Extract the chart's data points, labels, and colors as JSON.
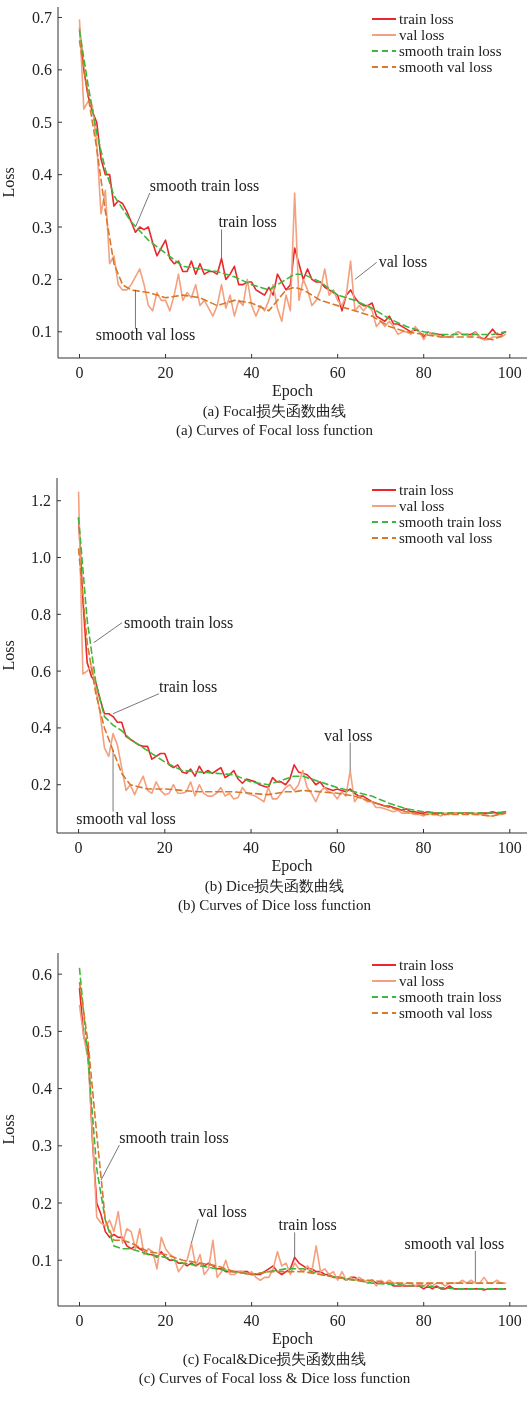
{
  "chart_data": [
    {
      "type": "line",
      "title": "(a) Focal损失函数曲线",
      "subtitle": "(a) Curves of Focal loss function",
      "xlabel": "Epoch",
      "ylabel": "Loss",
      "xlim": [
        -5,
        104
      ],
      "ylim": [
        0.05,
        0.72
      ],
      "xticks": [
        0,
        20,
        40,
        60,
        80,
        100
      ],
      "yticks": [
        0.1,
        0.2,
        0.3,
        0.4,
        0.5,
        0.6,
        0.7
      ],
      "legend": "top right",
      "x": [
        0,
        1,
        2,
        3,
        4,
        5,
        6,
        7,
        8,
        9,
        10,
        11,
        12,
        13,
        14,
        15,
        16,
        17,
        18,
        19,
        20,
        21,
        22,
        23,
        24,
        25,
        26,
        27,
        28,
        29,
        30,
        31,
        32,
        33,
        34,
        35,
        36,
        37,
        38,
        39,
        40,
        41,
        42,
        43,
        44,
        45,
        46,
        47,
        48,
        49,
        50,
        51,
        52,
        53,
        54,
        55,
        56,
        57,
        58,
        59,
        60,
        61,
        62,
        63,
        64,
        65,
        66,
        67,
        68,
        69,
        70,
        71,
        72,
        73,
        74,
        75,
        76,
        77,
        78,
        79,
        80,
        81,
        82,
        83,
        84,
        85,
        86,
        87,
        88,
        89,
        90,
        91,
        92,
        93,
        94,
        95,
        96,
        97,
        98,
        99
      ],
      "series": [
        {
          "name": "train loss",
          "color": "#e8282b",
          "line_style": "solid",
          "values": [
            0.68,
            0.6,
            0.55,
            0.52,
            0.5,
            0.43,
            0.4,
            0.4,
            0.34,
            0.35,
            0.345,
            0.33,
            0.31,
            0.29,
            0.3,
            0.295,
            0.3,
            0.27,
            0.245,
            0.26,
            0.275,
            0.24,
            0.23,
            0.235,
            0.215,
            0.215,
            0.235,
            0.21,
            0.23,
            0.21,
            0.215,
            0.215,
            0.21,
            0.24,
            0.2,
            0.21,
            0.225,
            0.19,
            0.19,
            0.195,
            0.195,
            0.18,
            0.175,
            0.17,
            0.185,
            0.17,
            0.21,
            0.195,
            0.18,
            0.19,
            0.26,
            0.23,
            0.2,
            0.22,
            0.2,
            0.195,
            0.195,
            0.185,
            0.18,
            0.175,
            0.17,
            0.14,
            0.17,
            0.18,
            0.165,
            0.155,
            0.15,
            0.15,
            0.155,
            0.13,
            0.125,
            0.12,
            0.13,
            0.115,
            0.115,
            0.11,
            0.105,
            0.1,
            0.105,
            0.1,
            0.09,
            0.1,
            0.095,
            0.095,
            0.095,
            0.09,
            0.09,
            0.095,
            0.1,
            0.095,
            0.095,
            0.095,
            0.1,
            0.09,
            0.085,
            0.095,
            0.105,
            0.095,
            0.095,
            0.1
          ]
        },
        {
          "name": "val loss",
          "color": "#f4a07f",
          "line_style": "solid",
          "values": [
            0.695,
            0.525,
            0.54,
            0.53,
            0.46,
            0.325,
            0.37,
            0.23,
            0.245,
            0.19,
            0.18,
            0.18,
            0.19,
            0.205,
            0.22,
            0.19,
            0.15,
            0.14,
            0.175,
            0.16,
            0.16,
            0.14,
            0.17,
            0.21,
            0.16,
            0.175,
            0.165,
            0.19,
            0.15,
            0.16,
            0.145,
            0.13,
            0.15,
            0.19,
            0.145,
            0.17,
            0.13,
            0.16,
            0.15,
            0.2,
            0.15,
            0.13,
            0.15,
            0.14,
            0.16,
            0.19,
            0.145,
            0.12,
            0.17,
            0.14,
            0.365,
            0.16,
            0.2,
            0.18,
            0.15,
            0.16,
            0.18,
            0.22,
            0.17,
            0.18,
            0.16,
            0.15,
            0.17,
            0.235,
            0.14,
            0.15,
            0.14,
            0.15,
            0.14,
            0.11,
            0.12,
            0.11,
            0.12,
            0.11,
            0.095,
            0.1,
            0.1,
            0.095,
            0.11,
            0.1,
            0.085,
            0.1,
            0.095,
            0.095,
            0.09,
            0.09,
            0.09,
            0.095,
            0.1,
            0.095,
            0.095,
            0.09,
            0.1,
            0.09,
            0.085,
            0.085,
            0.09,
            0.09,
            0.09,
            0.095
          ]
        },
        {
          "name": "smooth train loss",
          "color": "#3cb83c",
          "line_style": "dashed",
          "x": [
            0,
            2,
            4,
            6,
            8,
            10,
            12,
            16,
            20,
            24,
            28,
            32,
            36,
            40,
            44,
            48,
            50,
            52,
            56,
            60,
            64,
            68,
            72,
            76,
            80,
            84,
            88,
            92,
            96,
            99
          ],
          "values": [
            0.675,
            0.57,
            0.48,
            0.41,
            0.36,
            0.335,
            0.31,
            0.275,
            0.25,
            0.225,
            0.22,
            0.215,
            0.205,
            0.19,
            0.18,
            0.2,
            0.21,
            0.21,
            0.195,
            0.17,
            0.16,
            0.145,
            0.125,
            0.11,
            0.1,
            0.095,
            0.095,
            0.095,
            0.095,
            0.1
          ]
        },
        {
          "name": "smooth val loss",
          "color": "#d8782a",
          "line_style": "dashed",
          "x": [
            0,
            2,
            4,
            6,
            8,
            10,
            12,
            16,
            20,
            24,
            28,
            32,
            36,
            40,
            44,
            48,
            50,
            52,
            56,
            60,
            64,
            68,
            72,
            76,
            80,
            84,
            88,
            92,
            96,
            99
          ],
          "values": [
            0.655,
            0.55,
            0.45,
            0.33,
            0.23,
            0.19,
            0.18,
            0.175,
            0.165,
            0.17,
            0.165,
            0.15,
            0.16,
            0.155,
            0.14,
            0.18,
            0.185,
            0.18,
            0.16,
            0.15,
            0.14,
            0.13,
            0.11,
            0.1,
            0.095,
            0.09,
            0.09,
            0.09,
            0.085,
            0.095
          ]
        }
      ],
      "annotations": [
        {
          "text": "smooth train loss",
          "x": 13,
          "y": 0.3
        },
        {
          "text": "train loss",
          "x": 33,
          "y": 0.24
        },
        {
          "text": "val loss",
          "x": 64,
          "y": 0.2
        },
        {
          "text": "smooth val loss",
          "x": 13,
          "y": 0.18
        }
      ]
    },
    {
      "type": "line",
      "title": "(b) Dice损失函数曲线",
      "subtitle": "(b) Curves of Dice loss function",
      "xlabel": "Epoch",
      "ylabel": "Loss",
      "xlim": [
        -5,
        104
      ],
      "ylim": [
        0.03,
        1.28
      ],
      "xticks": [
        0,
        20,
        40,
        60,
        80,
        100
      ],
      "yticks": [
        {
          "value": 0.2,
          "label": "0.2"
        },
        {
          "value": 0.4,
          "label": "0.4"
        },
        {
          "value": 0.6,
          "label": "0.6"
        },
        {
          "value": 0.8,
          "label": "0.8"
        },
        {
          "value": 1.0,
          "label": "1.0"
        },
        {
          "value": 1.2,
          "label": "1.2"
        }
      ],
      "legend": "top right",
      "x": [
        0,
        1,
        2,
        3,
        4,
        5,
        6,
        7,
        8,
        9,
        10,
        11,
        12,
        13,
        14,
        15,
        16,
        17,
        18,
        19,
        20,
        21,
        22,
        23,
        24,
        25,
        26,
        27,
        28,
        29,
        30,
        31,
        32,
        33,
        34,
        35,
        36,
        37,
        38,
        39,
        40,
        41,
        42,
        43,
        44,
        45,
        46,
        47,
        48,
        49,
        50,
        51,
        52,
        53,
        54,
        55,
        56,
        57,
        58,
        59,
        60,
        61,
        62,
        63,
        64,
        65,
        66,
        67,
        68,
        69,
        70,
        71,
        72,
        73,
        74,
        75,
        76,
        77,
        78,
        79,
        80,
        81,
        82,
        83,
        84,
        85,
        86,
        87,
        88,
        89,
        90,
        91,
        92,
        93,
        94,
        95,
        96,
        97,
        98,
        99
      ],
      "series": [
        {
          "name": "train loss",
          "color": "#e8282b",
          "line_style": "solid",
          "values": [
            1.14,
            0.85,
            0.63,
            0.58,
            0.56,
            0.5,
            0.45,
            0.45,
            0.44,
            0.42,
            0.42,
            0.37,
            0.36,
            0.35,
            0.34,
            0.335,
            0.335,
            0.29,
            0.3,
            0.31,
            0.31,
            0.27,
            0.26,
            0.27,
            0.245,
            0.24,
            0.255,
            0.23,
            0.265,
            0.24,
            0.25,
            0.24,
            0.25,
            0.26,
            0.225,
            0.235,
            0.25,
            0.22,
            0.205,
            0.22,
            0.215,
            0.21,
            0.2,
            0.195,
            0.19,
            0.225,
            0.21,
            0.21,
            0.2,
            0.22,
            0.27,
            0.245,
            0.24,
            0.235,
            0.22,
            0.2,
            0.21,
            0.19,
            0.185,
            0.18,
            0.185,
            0.18,
            0.175,
            0.185,
            0.17,
            0.16,
            0.16,
            0.15,
            0.14,
            0.135,
            0.13,
            0.125,
            0.125,
            0.12,
            0.115,
            0.11,
            0.115,
            0.105,
            0.105,
            0.1,
            0.1,
            0.105,
            0.1,
            0.1,
            0.1,
            0.095,
            0.1,
            0.1,
            0.1,
            0.1,
            0.1,
            0.1,
            0.095,
            0.1,
            0.1,
            0.1,
            0.105,
            0.1,
            0.1,
            0.105
          ]
        },
        {
          "name": "val loss",
          "color": "#f4a07f",
          "line_style": "solid",
          "values": [
            1.23,
            0.59,
            0.6,
            0.62,
            0.54,
            0.45,
            0.33,
            0.3,
            0.38,
            0.34,
            0.26,
            0.18,
            0.2,
            0.165,
            0.2,
            0.23,
            0.18,
            0.17,
            0.21,
            0.18,
            0.165,
            0.17,
            0.2,
            0.17,
            0.17,
            0.175,
            0.21,
            0.16,
            0.2,
            0.17,
            0.16,
            0.16,
            0.17,
            0.19,
            0.16,
            0.17,
            0.15,
            0.155,
            0.19,
            0.17,
            0.165,
            0.16,
            0.15,
            0.14,
            0.19,
            0.15,
            0.15,
            0.17,
            0.19,
            0.2,
            0.18,
            0.2,
            0.25,
            0.19,
            0.17,
            0.14,
            0.175,
            0.19,
            0.175,
            0.17,
            0.15,
            0.175,
            0.16,
            0.25,
            0.14,
            0.16,
            0.15,
            0.14,
            0.14,
            0.12,
            0.12,
            0.115,
            0.11,
            0.105,
            0.11,
            0.1,
            0.1,
            0.1,
            0.095,
            0.095,
            0.09,
            0.1,
            0.095,
            0.095,
            0.09,
            0.1,
            0.095,
            0.1,
            0.1,
            0.1,
            0.095,
            0.1,
            0.1,
            0.095,
            0.095,
            0.09,
            0.09,
            0.095,
            0.095,
            0.1
          ]
        },
        {
          "name": "smooth train loss",
          "color": "#3cb83c",
          "line_style": "dashed",
          "x": [
            0,
            2,
            4,
            6,
            8,
            10,
            12,
            16,
            20,
            24,
            28,
            32,
            36,
            40,
            44,
            48,
            50,
            52,
            56,
            60,
            64,
            68,
            72,
            76,
            80,
            84,
            88,
            92,
            96,
            99
          ],
          "values": [
            1.14,
            0.78,
            0.56,
            0.44,
            0.41,
            0.39,
            0.36,
            0.32,
            0.28,
            0.25,
            0.245,
            0.24,
            0.235,
            0.21,
            0.2,
            0.22,
            0.23,
            0.23,
            0.21,
            0.19,
            0.175,
            0.16,
            0.135,
            0.115,
            0.105,
            0.1,
            0.1,
            0.1,
            0.1,
            0.105
          ]
        },
        {
          "name": "smooth val loss",
          "color": "#d8782a",
          "line_style": "dashed",
          "x": [
            0,
            2,
            4,
            6,
            8,
            10,
            12,
            16,
            20,
            24,
            28,
            32,
            36,
            40,
            44,
            48,
            50,
            52,
            56,
            60,
            64,
            68,
            72,
            76,
            80,
            84,
            88,
            92,
            96,
            99
          ],
          "values": [
            1.03,
            0.7,
            0.52,
            0.4,
            0.32,
            0.24,
            0.2,
            0.185,
            0.185,
            0.18,
            0.175,
            0.175,
            0.175,
            0.17,
            0.165,
            0.175,
            0.175,
            0.18,
            0.175,
            0.17,
            0.16,
            0.14,
            0.12,
            0.105,
            0.095,
            0.095,
            0.095,
            0.095,
            0.09,
            0.1
          ]
        }
      ],
      "annotations": [
        {
          "text": "smooth train loss",
          "x": 3.5,
          "y": 0.7
        },
        {
          "text": "train loss",
          "x": 8,
          "y": 0.45
        },
        {
          "text": "val loss",
          "x": 63,
          "y": 0.25
        },
        {
          "text": "smooth val loss",
          "x": 8,
          "y": 0.32
        }
      ]
    },
    {
      "type": "line",
      "title": "(c) Focal&Dice损失函数曲线",
      "subtitle": "(c) Curves of Focal loss & Dice loss function",
      "xlabel": "Epoch",
      "ylabel": "Loss",
      "xlim": [
        -5,
        104
      ],
      "ylim": [
        0.02,
        0.637
      ],
      "xticks": [
        0,
        20,
        40,
        60,
        80,
        100
      ],
      "yticks": [
        0.1,
        0.2,
        0.3,
        0.4,
        0.5,
        0.6
      ],
      "legend": "top right",
      "x": [
        0,
        1,
        2,
        3,
        4,
        5,
        6,
        7,
        8,
        9,
        10,
        11,
        12,
        13,
        14,
        15,
        16,
        17,
        18,
        19,
        20,
        21,
        22,
        23,
        24,
        25,
        26,
        27,
        28,
        29,
        30,
        31,
        32,
        33,
        34,
        35,
        36,
        37,
        38,
        39,
        40,
        41,
        42,
        43,
        44,
        45,
        46,
        47,
        48,
        49,
        50,
        51,
        52,
        53,
        54,
        55,
        56,
        57,
        58,
        59,
        60,
        61,
        62,
        63,
        64,
        65,
        66,
        67,
        68,
        69,
        70,
        71,
        72,
        73,
        74,
        75,
        76,
        77,
        78,
        79,
        80,
        81,
        82,
        83,
        84,
        85,
        86,
        87,
        88,
        89,
        90,
        91,
        92,
        93,
        94,
        95,
        96,
        97,
        98,
        99
      ],
      "series": [
        {
          "name": "train loss",
          "color": "#e8282b",
          "line_style": "solid",
          "values": [
            0.575,
            0.49,
            0.47,
            0.31,
            0.2,
            0.18,
            0.15,
            0.14,
            0.145,
            0.14,
            0.14,
            0.125,
            0.12,
            0.125,
            0.12,
            0.115,
            0.11,
            0.11,
            0.105,
            0.115,
            0.105,
            0.1,
            0.1,
            0.095,
            0.095,
            0.09,
            0.095,
            0.09,
            0.095,
            0.09,
            0.095,
            0.09,
            0.085,
            0.085,
            0.08,
            0.08,
            0.08,
            0.08,
            0.08,
            0.08,
            0.075,
            0.075,
            0.075,
            0.08,
            0.085,
            0.09,
            0.08,
            0.075,
            0.08,
            0.085,
            0.105,
            0.095,
            0.09,
            0.085,
            0.085,
            0.08,
            0.08,
            0.075,
            0.075,
            0.07,
            0.07,
            0.07,
            0.065,
            0.07,
            0.07,
            0.065,
            0.065,
            0.06,
            0.065,
            0.06,
            0.06,
            0.06,
            0.06,
            0.055,
            0.055,
            0.055,
            0.055,
            0.055,
            0.055,
            0.055,
            0.05,
            0.055,
            0.05,
            0.055,
            0.05,
            0.05,
            0.055,
            0.05,
            0.05,
            0.05,
            0.05,
            0.05,
            0.05,
            0.05,
            0.048,
            0.05,
            0.05,
            0.05,
            0.05,
            0.05
          ]
        },
        {
          "name": "val loss",
          "color": "#f4a07f",
          "line_style": "solid",
          "values": [
            0.545,
            0.49,
            0.45,
            0.32,
            0.175,
            0.165,
            0.16,
            0.17,
            0.15,
            0.185,
            0.13,
            0.155,
            0.15,
            0.12,
            0.155,
            0.11,
            0.12,
            0.115,
            0.085,
            0.14,
            0.12,
            0.11,
            0.105,
            0.08,
            0.09,
            0.1,
            0.13,
            0.09,
            0.11,
            0.075,
            0.085,
            0.135,
            0.07,
            0.08,
            0.1,
            0.075,
            0.075,
            0.08,
            0.08,
            0.075,
            0.08,
            0.07,
            0.065,
            0.07,
            0.07,
            0.085,
            0.115,
            0.09,
            0.095,
            0.075,
            0.095,
            0.085,
            0.08,
            0.09,
            0.08,
            0.125,
            0.08,
            0.085,
            0.075,
            0.08,
            0.065,
            0.08,
            0.065,
            0.07,
            0.065,
            0.07,
            0.065,
            0.06,
            0.065,
            0.055,
            0.065,
            0.06,
            0.065,
            0.06,
            0.06,
            0.055,
            0.06,
            0.06,
            0.055,
            0.06,
            0.055,
            0.06,
            0.055,
            0.06,
            0.06,
            0.055,
            0.06,
            0.06,
            0.06,
            0.065,
            0.06,
            0.065,
            0.06,
            0.06,
            0.07,
            0.06,
            0.06,
            0.065,
            0.06,
            0.06
          ]
        },
        {
          "name": "smooth train loss",
          "color": "#3cb83c",
          "line_style": "dashed",
          "x": [
            0,
            2,
            4,
            6,
            8,
            10,
            12,
            16,
            20,
            24,
            28,
            32,
            36,
            40,
            44,
            48,
            50,
            52,
            56,
            60,
            64,
            68,
            72,
            76,
            80,
            84,
            88,
            92,
            96,
            99
          ],
          "values": [
            0.61,
            0.45,
            0.26,
            0.17,
            0.125,
            0.12,
            0.12,
            0.11,
            0.105,
            0.095,
            0.09,
            0.085,
            0.08,
            0.075,
            0.08,
            0.085,
            0.085,
            0.085,
            0.075,
            0.07,
            0.065,
            0.06,
            0.058,
            0.056,
            0.055,
            0.052,
            0.05,
            0.05,
            0.05,
            0.05
          ]
        },
        {
          "name": "smooth val loss",
          "color": "#d8782a",
          "line_style": "dashed",
          "x": [
            0,
            2,
            4,
            6,
            8,
            10,
            12,
            16,
            20,
            24,
            28,
            32,
            36,
            40,
            44,
            48,
            50,
            52,
            56,
            60,
            64,
            68,
            72,
            76,
            80,
            84,
            88,
            92,
            96,
            99
          ],
          "values": [
            0.585,
            0.48,
            0.32,
            0.17,
            0.135,
            0.135,
            0.13,
            0.115,
            0.11,
            0.1,
            0.095,
            0.09,
            0.08,
            0.075,
            0.08,
            0.08,
            0.08,
            0.08,
            0.075,
            0.07,
            0.065,
            0.065,
            0.06,
            0.06,
            0.06,
            0.06,
            0.06,
            0.06,
            0.06,
            0.06
          ]
        }
      ],
      "annotations": [
        {
          "text": "smooth train loss",
          "x": 5,
          "y": 0.24
        },
        {
          "text": "val loss",
          "x": 26,
          "y": 0.13
        },
        {
          "text": "train loss",
          "x": 50,
          "y": 0.105
        },
        {
          "text": "smooth val loss",
          "x": 92,
          "y": 0.062
        }
      ]
    }
  ]
}
